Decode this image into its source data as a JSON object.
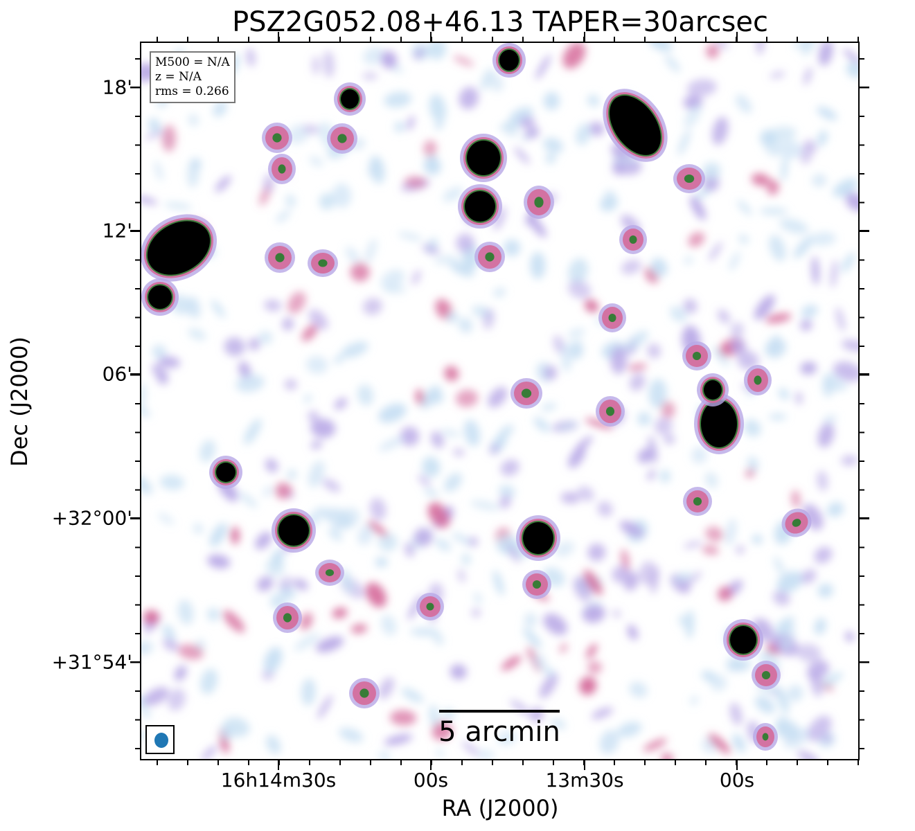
{
  "title": "PSZ2G052.08+46.13 TAPER=30arcsec",
  "axes": {
    "xlabel": "RA (J2000)",
    "ylabel": "Dec (J2000)",
    "xticks": [
      "16h14m30s",
      "00s",
      "13m30s",
      "00s"
    ],
    "yticks": [
      "18'",
      "12'",
      "06'",
      "+32°00'",
      "+31°54'"
    ]
  },
  "info": {
    "mass": "M500 = N/A",
    "redshift": "z = N/A",
    "rms": "rms = 0.266"
  },
  "scalebar": {
    "label": "5 arcmin"
  },
  "colors": {
    "background": "#ffffff",
    "low_emission": "#c7dff3",
    "mid_emission": "#b8a8e6",
    "high_emission": "#d56a9a",
    "peak_ring": "#2e7d32",
    "source_core": "#000000",
    "beam": "#1f77b4"
  }
}
